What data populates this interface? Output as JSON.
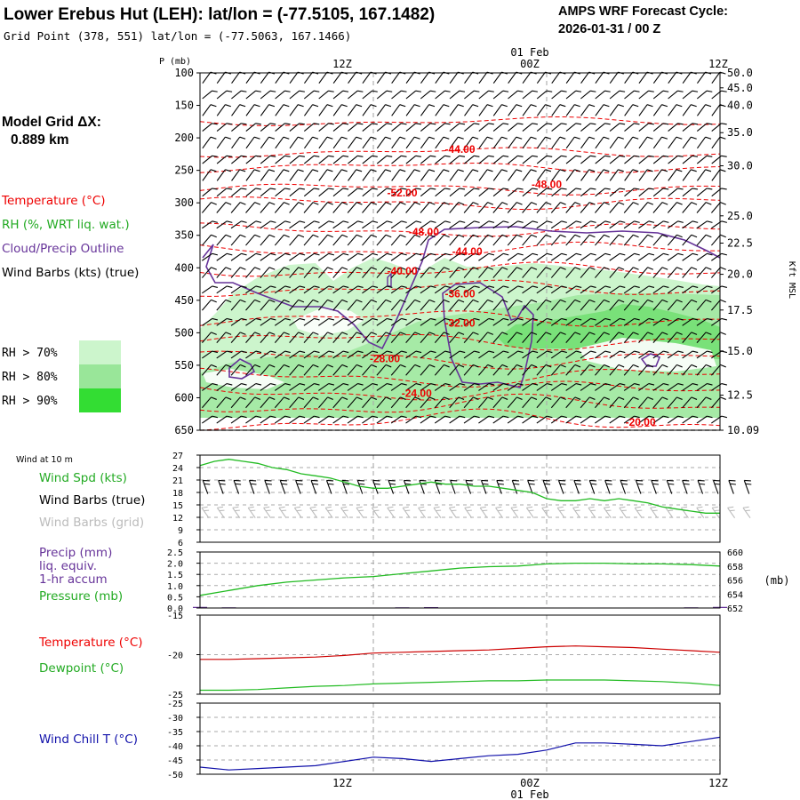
{
  "header": {
    "title": "Lower Erebus Hut (LEH):  lat/lon = (-77.5105, 167.1482)",
    "cycle_label": "AMPS WRF Forecast Cycle:",
    "cycle_value": "2026-01-31 / 00  Z",
    "grid_point": "Grid Point (378, 551) lat/lon = (-77.5063, 167.1466)"
  },
  "sidebar": {
    "model_grid_label": "Model Grid ΔX:",
    "model_grid_value": "0.889 km",
    "legend_temperature": "Temperature (°C)",
    "legend_rh": "RH (%, WRT liq. wat.)",
    "legend_cloud": "Cloud/Precip Outline",
    "legend_wind": "Wind Barbs (kts) (true)",
    "rh_levels": [
      "RH > 70%",
      "RH > 80%",
      "RH > 90%"
    ]
  },
  "colors": {
    "temperature": "#ee0000",
    "rh70": "#ccf5cc",
    "rh80": "#99e699",
    "rh90": "#33dd33",
    "cloud": "#663399",
    "wind_green": "#22bb22",
    "wind_chill": "#1111aa",
    "grid_barb": "#bbbbbb"
  },
  "time_axis": {
    "top_date": "01 Feb",
    "bottom_date": "01 Feb",
    "ticks": [
      "12Z",
      "00Z",
      "12Z"
    ]
  },
  "chart_data": [
    {
      "id": "sounding",
      "type": "contour",
      "ylabel": "P (mb)",
      "right_axis_label": "Kft MSL",
      "p_ticks": [
        100,
        150,
        200,
        250,
        300,
        350,
        400,
        450,
        500,
        550,
        600,
        650
      ],
      "kft_ticks": [
        "50.0",
        "45.0",
        "40.0",
        "35.0",
        "30.0",
        "25.0",
        "22.5",
        "20.0",
        "17.5",
        "15.0",
        "12.5",
        "10.09"
      ],
      "kft_pressure": [
        100,
        123,
        150,
        192,
        243,
        320,
        362,
        410,
        465,
        528,
        596,
        650
      ],
      "ylim": [
        100,
        650
      ],
      "x_range_hours": [
        0,
        36
      ],
      "temperature_labels": [
        {
          "text": "-44.00",
          "hour": 18.0,
          "p": 218
        },
        {
          "text": "-48.00",
          "hour": 24.0,
          "p": 272
        },
        {
          "text": "-52.00",
          "hour": 14.0,
          "p": 285
        },
        {
          "text": "-48.00",
          "hour": 15.5,
          "p": 345
        },
        {
          "text": "-44.00",
          "hour": 18.5,
          "p": 375
        },
        {
          "text": "-40.00",
          "hour": 14.0,
          "p": 405
        },
        {
          "text": "-36.00",
          "hour": 18.0,
          "p": 440
        },
        {
          "text": "-32.00",
          "hour": 18.0,
          "p": 485
        },
        {
          "text": "-28.00",
          "hour": 12.8,
          "p": 540
        },
        {
          "text": "-24.00",
          "hour": 15.0,
          "p": 593
        },
        {
          "text": "-20.00",
          "hour": 30.5,
          "p": 638
        }
      ]
    },
    {
      "id": "wind10m",
      "type": "line",
      "title": "Wind at 10 m",
      "series_label": "Wind Spd (kts)",
      "barbs_true_label": "Wind Barbs (true)",
      "barbs_grid_label": "Wind Barbs (grid)",
      "yticks": [
        6,
        9,
        12,
        15,
        18,
        21,
        24,
        27
      ],
      "ylim": [
        6,
        27
      ],
      "x": [
        0,
        1,
        2,
        3,
        4,
        5,
        6,
        7,
        8,
        9,
        10,
        11,
        12,
        13,
        14,
        15,
        16,
        17,
        18,
        19,
        20,
        21,
        22,
        23,
        24,
        25,
        26,
        27,
        28,
        29,
        30,
        31,
        32,
        33,
        34,
        35,
        36
      ],
      "values": [
        24.5,
        25.5,
        26,
        25.5,
        25,
        24,
        23.5,
        22.5,
        22,
        21.5,
        20.5,
        19.5,
        19,
        19,
        19.5,
        20,
        20.5,
        20,
        20,
        19.5,
        19.5,
        19,
        18.5,
        18,
        16.5,
        16,
        16,
        16.5,
        16,
        16.5,
        16,
        15.5,
        14.5,
        14,
        13.5,
        13,
        13
      ]
    },
    {
      "id": "precip_pressure",
      "type": "line",
      "precip_label": "Precip (mm)",
      "precip_sub1": "liq. equiv.",
      "precip_sub2": "1-hr accum",
      "pressure_label": "Pressure (mb)",
      "right_unit": "(mb)",
      "left_ticks": [
        "0.0",
        "0.5",
        "1.0",
        "1.5",
        "2.0",
        "2.5"
      ],
      "right_ticks": [
        "652",
        "654",
        "656",
        "658",
        "660"
      ],
      "ylim_precip": [
        0,
        2.5
      ],
      "ylim_pressure": [
        652,
        660
      ],
      "x": [
        0,
        2,
        4,
        6,
        8,
        10,
        12,
        14,
        16,
        18,
        20,
        22,
        24,
        26,
        28,
        30,
        32,
        34,
        36
      ],
      "pressure": [
        653.8,
        654.5,
        655.2,
        655.7,
        656.0,
        656.3,
        656.5,
        656.9,
        657.3,
        657.7,
        657.9,
        658.0,
        658.3,
        658.4,
        658.4,
        658.3,
        658.3,
        658.2,
        658.0
      ],
      "precip": [
        0.05,
        0.03,
        0.02,
        0.02,
        0.02,
        0.02,
        0.02,
        0.03,
        0.04,
        0.02,
        0.02,
        0.02,
        0.02,
        0.02,
        0.02,
        0.02,
        0.02,
        0.03,
        0.05
      ]
    },
    {
      "id": "temp_dewpoint",
      "type": "line",
      "temp_label": "Temperature (°C)",
      "dew_label": "Dewpoint (°C)",
      "yticks": [
        "-25",
        "-20",
        "-15"
      ],
      "ylim": [
        -25,
        -15
      ],
      "x": [
        0,
        2,
        4,
        6,
        8,
        10,
        12,
        14,
        16,
        18,
        20,
        22,
        24,
        26,
        28,
        30,
        32,
        34,
        36
      ],
      "temperature": [
        -20.6,
        -20.6,
        -20.5,
        -20.4,
        -20.3,
        -20.1,
        -19.8,
        -19.7,
        -19.6,
        -19.5,
        -19.4,
        -19.2,
        -19.0,
        -18.9,
        -19.0,
        -19.1,
        -19.3,
        -19.5,
        -19.7
      ],
      "dewpoint": [
        -24.5,
        -24.5,
        -24.4,
        -24.2,
        -24.0,
        -23.9,
        -23.7,
        -23.6,
        -23.5,
        -23.4,
        -23.3,
        -23.3,
        -23.2,
        -23.2,
        -23.2,
        -23.3,
        -23.4,
        -23.6,
        -23.9
      ]
    },
    {
      "id": "wind_chill",
      "type": "line",
      "label": "Wind Chill T (°C)",
      "yticks": [
        "-50",
        "-45",
        "-40",
        "-35",
        "-30",
        "-25"
      ],
      "ylim": [
        -50,
        -25
      ],
      "x": [
        0,
        2,
        4,
        6,
        8,
        10,
        12,
        14,
        16,
        18,
        20,
        22,
        24,
        26,
        28,
        30,
        32,
        34,
        36
      ],
      "values": [
        -47.5,
        -48.5,
        -48,
        -47.5,
        -47,
        -45.5,
        -44,
        -44.5,
        -45.5,
        -44.5,
        -43.5,
        -43,
        -41.5,
        -39,
        -39,
        -39.5,
        -40,
        -38.5,
        -37
      ]
    }
  ]
}
